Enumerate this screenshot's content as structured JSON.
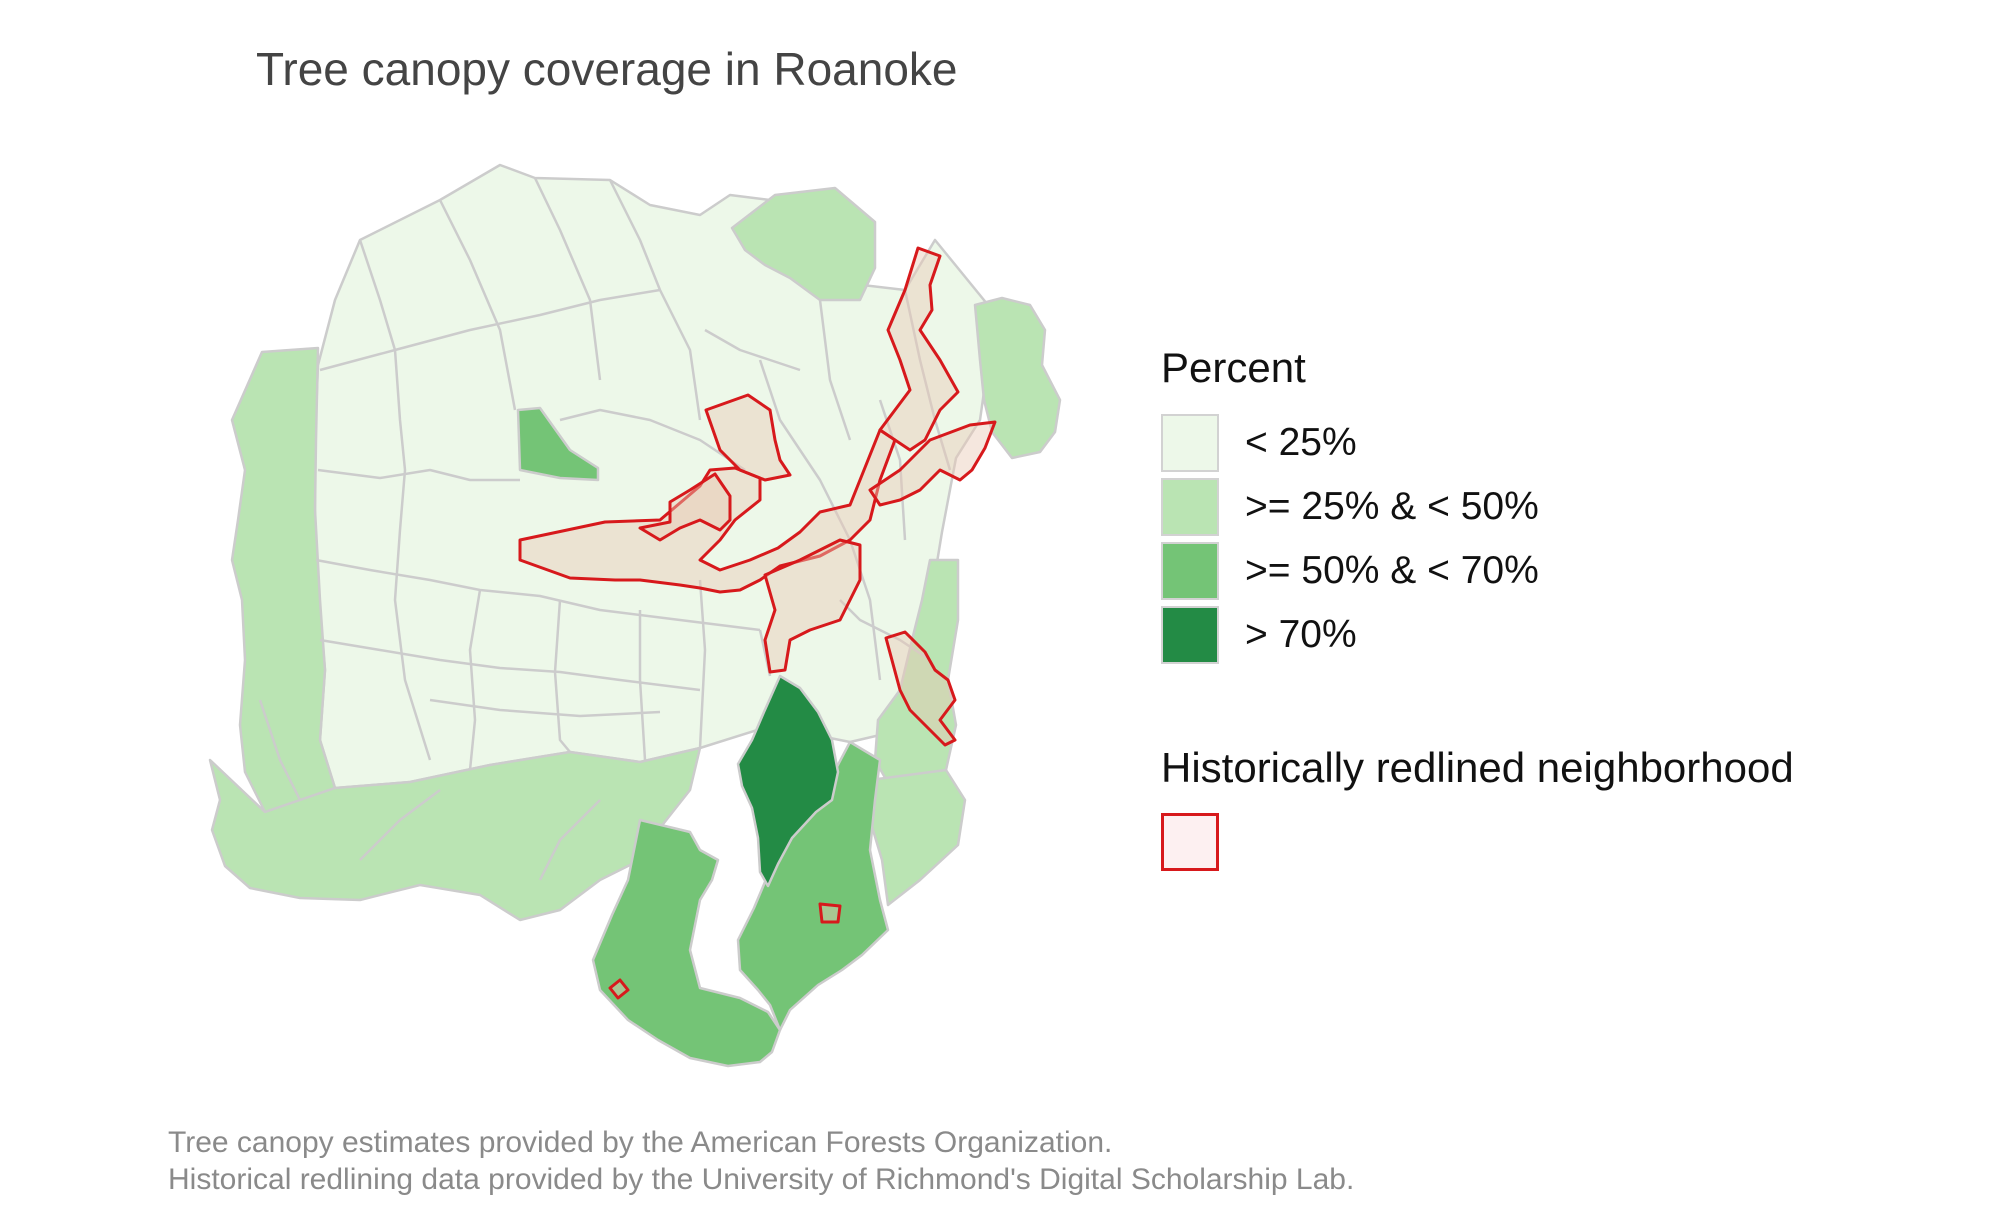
{
  "title": "Tree canopy coverage in Roanoke",
  "legend": {
    "title": "Percent",
    "items": [
      {
        "label": "< 25%",
        "color": "#edf8e9"
      },
      {
        "label": ">= 25% & < 50%",
        "color": "#bae4b3"
      },
      {
        "label": ">= 50% & < 70%",
        "color": "#74c476"
      },
      {
        "label": "> 70%",
        "color": "#238b45"
      }
    ],
    "redline_title": "Historically redlined neighborhood",
    "redline_colors": {
      "stroke": "#d7191c",
      "fill": "#fdf0f1"
    }
  },
  "caption": {
    "line1": "Tree canopy estimates provided by the American Forests Organization.",
    "line2": "Historical redlining data provided by the University of Richmond's Digital Scholarship Lab."
  }
}
